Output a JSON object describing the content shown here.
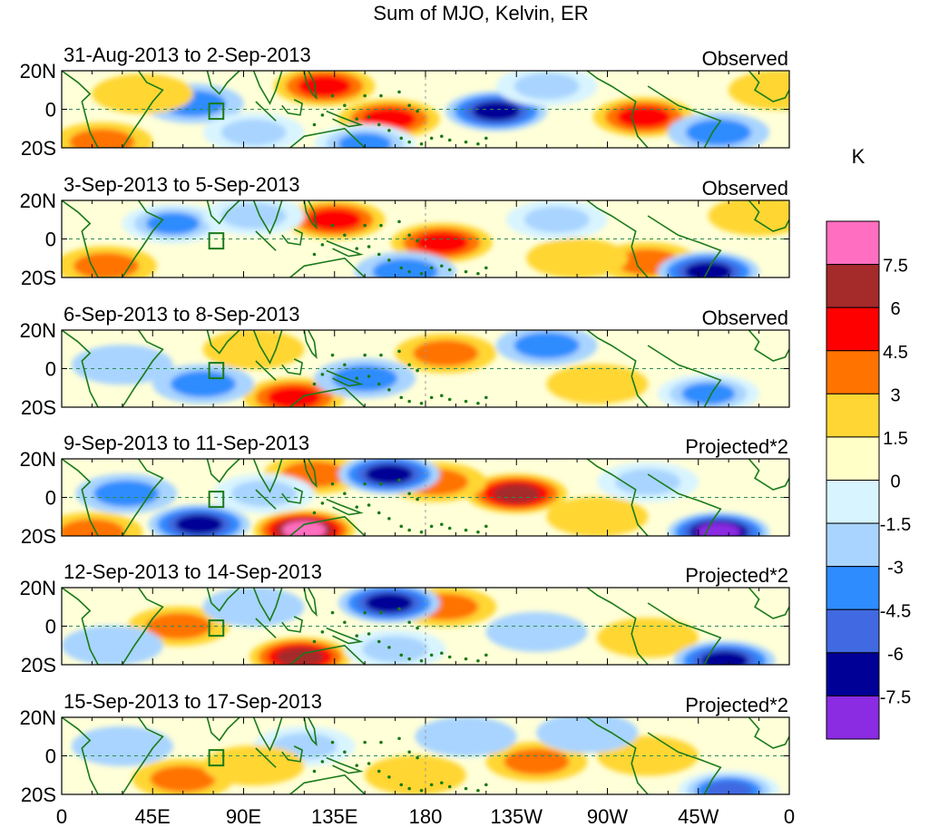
{
  "chart_data": {
    "type": "heatmap",
    "title": "Sum of MJO, Kelvin, ER",
    "x_ticks": [
      "0",
      "45E",
      "90E",
      "135E",
      "180",
      "135W",
      "90W",
      "45W",
      "0"
    ],
    "y_ticks": [
      "20N",
      "0",
      "20S"
    ],
    "xlim": [
      0,
      360
    ],
    "ylim": [
      -20,
      20
    ],
    "colorbar": {
      "unit": "K",
      "levels": [
        "7.5",
        "6",
        "4.5",
        "3",
        "1.5",
        "0",
        "-1.5",
        "-3",
        "-4.5",
        "-6",
        "-7.5"
      ],
      "colors": [
        "#ff6ec0",
        "#a52a2a",
        "#ff0000",
        "#ff7300",
        "#ffd633",
        "#ffffc8",
        "#d8f4ff",
        "#a8d4ff",
        "#2e8cff",
        "#4169e1",
        "#000096",
        "#8b2be2"
      ]
    },
    "panels": [
      {
        "period": "31-Aug-2013 to 2-Sep-2013",
        "label": "Observed",
        "features": [
          {
            "lon": 130,
            "lat": 12,
            "value": 5.2
          },
          {
            "lon": 162,
            "lat": -5,
            "value": 4.6
          },
          {
            "lon": 288,
            "lat": -4,
            "value": 5.0
          },
          {
            "lon": 20,
            "lat": -17,
            "value": 4.0
          },
          {
            "lon": 215,
            "lat": -1,
            "value": -6.5
          },
          {
            "lon": 150,
            "lat": -18,
            "value": -4.5
          },
          {
            "lon": 65,
            "lat": 3,
            "value": -3.5
          },
          {
            "lon": 325,
            "lat": -12,
            "value": -4.2
          },
          {
            "lon": 95,
            "lat": -12,
            "value": -3.0
          },
          {
            "lon": 240,
            "lat": 12,
            "value": -3.0
          },
          {
            "lon": 40,
            "lat": 8,
            "value": 2.0
          },
          {
            "lon": 355,
            "lat": 10,
            "value": 2.0
          }
        ]
      },
      {
        "period": "3-Sep-2013 to 5-Sep-2013",
        "label": "Observed",
        "features": [
          {
            "lon": 135,
            "lat": 10,
            "value": 4.8
          },
          {
            "lon": 188,
            "lat": -2,
            "value": 5.0
          },
          {
            "lon": 290,
            "lat": -12,
            "value": 3.5
          },
          {
            "lon": 22,
            "lat": -14,
            "value": 3.0
          },
          {
            "lon": 55,
            "lat": 8,
            "value": -4.5
          },
          {
            "lon": 320,
            "lat": -17,
            "value": -6.5
          },
          {
            "lon": 170,
            "lat": -17,
            "value": -4.0
          },
          {
            "lon": 245,
            "lat": 10,
            "value": -3.0
          },
          {
            "lon": 95,
            "lat": 12,
            "value": -3.0
          },
          {
            "lon": 255,
            "lat": -10,
            "value": 2.0
          },
          {
            "lon": 345,
            "lat": 12,
            "value": 2.0
          }
        ]
      },
      {
        "period": "6-Sep-2013 to 8-Sep-2013",
        "label": "Observed",
        "features": [
          {
            "lon": 115,
            "lat": -15,
            "value": 5.8
          },
          {
            "lon": 190,
            "lat": 8,
            "value": 4.2
          },
          {
            "lon": 70,
            "lat": -8,
            "value": -4.0
          },
          {
            "lon": 150,
            "lat": -5,
            "value": -3.5
          },
          {
            "lon": 240,
            "lat": 12,
            "value": -4.0
          },
          {
            "lon": 320,
            "lat": -13,
            "value": -4.5
          },
          {
            "lon": 265,
            "lat": -8,
            "value": 2.5
          },
          {
            "lon": 30,
            "lat": 2,
            "value": -2.0
          },
          {
            "lon": 95,
            "lat": 10,
            "value": 2.0
          }
        ]
      },
      {
        "period": "9-Sep-2013 to 11-Sep-2013",
        "label": "Projected*2",
        "features": [
          {
            "lon": 120,
            "lat": -17,
            "value": 8.0
          },
          {
            "lon": 225,
            "lat": 2,
            "value": 6.0
          },
          {
            "lon": 185,
            "lat": 8,
            "value": 4.0
          },
          {
            "lon": 125,
            "lat": 12,
            "value": 4.0
          },
          {
            "lon": 15,
            "lat": -18,
            "value": 4.0
          },
          {
            "lon": 162,
            "lat": 12,
            "value": -7.0
          },
          {
            "lon": 68,
            "lat": -14,
            "value": -6.5
          },
          {
            "lon": 325,
            "lat": -18,
            "value": -8.0
          },
          {
            "lon": 32,
            "lat": 2,
            "value": -3.5
          },
          {
            "lon": 100,
            "lat": 2,
            "value": -3.0
          },
          {
            "lon": 265,
            "lat": -10,
            "value": 2.5
          },
          {
            "lon": 290,
            "lat": 8,
            "value": -3.0
          }
        ]
      },
      {
        "period": "12-Sep-2013 to 14-Sep-2013",
        "label": "Projected*2",
        "features": [
          {
            "lon": 118,
            "lat": -16,
            "value": 6.5
          },
          {
            "lon": 190,
            "lat": 10,
            "value": 3.5
          },
          {
            "lon": 290,
            "lat": -6,
            "value": 2.5
          },
          {
            "lon": 58,
            "lat": 0,
            "value": 3.0
          },
          {
            "lon": 162,
            "lat": 12,
            "value": -7.0
          },
          {
            "lon": 328,
            "lat": -18,
            "value": -7.0
          },
          {
            "lon": 165,
            "lat": -12,
            "value": -3.0
          },
          {
            "lon": 235,
            "lat": -3,
            "value": -2.5
          },
          {
            "lon": 25,
            "lat": -10,
            "value": -2.5
          },
          {
            "lon": 95,
            "lat": 10,
            "value": -2.0
          }
        ]
      },
      {
        "period": "15-Sep-2013 to 17-Sep-2013",
        "label": "Projected*2",
        "features": [
          {
            "lon": 60,
            "lat": -12,
            "value": 3.2
          },
          {
            "lon": 175,
            "lat": -10,
            "value": 2.5
          },
          {
            "lon": 235,
            "lat": -3,
            "value": 3.0
          },
          {
            "lon": 290,
            "lat": 0,
            "value": 2.0
          },
          {
            "lon": 330,
            "lat": -18,
            "value": -6.0
          },
          {
            "lon": 120,
            "lat": 5,
            "value": -3.0
          },
          {
            "lon": 200,
            "lat": 10,
            "value": -2.5
          },
          {
            "lon": 30,
            "lat": 5,
            "value": -2.5
          },
          {
            "lon": 260,
            "lat": 12,
            "value": -2.0
          },
          {
            "lon": 95,
            "lat": -5,
            "value": 2.0
          }
        ]
      }
    ]
  }
}
